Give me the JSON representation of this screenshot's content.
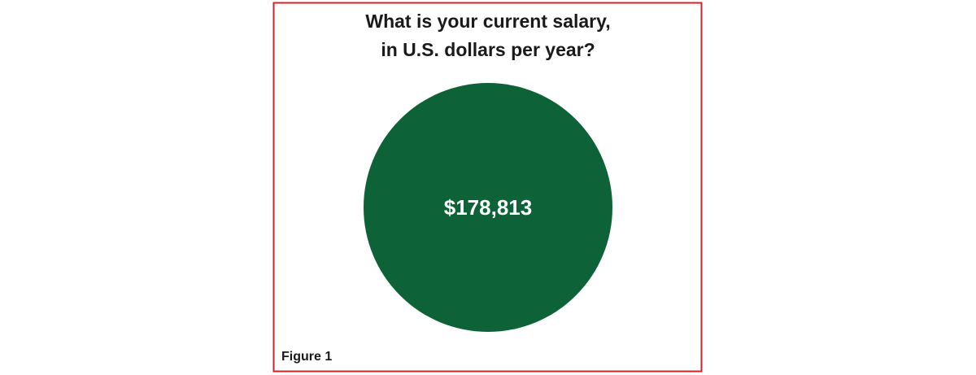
{
  "figure": {
    "title_lines": [
      "What is your current salary,",
      "in U.S. dollars per year?"
    ],
    "value": "$178,813",
    "label": "Figure 1"
  }
}
